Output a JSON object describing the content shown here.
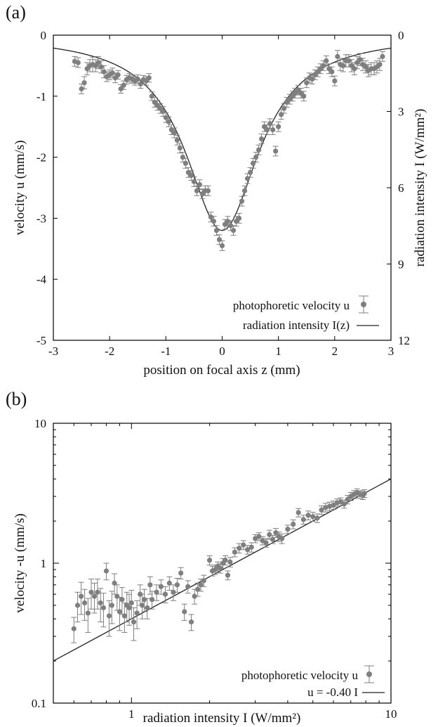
{
  "chart_data": [
    {
      "panel_label": "(a)",
      "type": "scatter",
      "xlabel": "position on focal axis z (mm)",
      "ylabel": "velocity u (mm/s)",
      "y2label": "radiation intensity I (W/mm²)",
      "xlim": [
        -3,
        3
      ],
      "ylim": [
        -5,
        0
      ],
      "y2lim": [
        12,
        0
      ],
      "x_ticks": [
        "-3",
        "-2",
        "-1",
        "0",
        "1",
        "2",
        "3"
      ],
      "y_ticks": [
        "0",
        "-1",
        "-2",
        "-3",
        "-4",
        "-5"
      ],
      "y2_ticks": [
        "0",
        "3",
        "6",
        "9",
        "12"
      ],
      "legend": {
        "position": "bottom-right",
        "entries": [
          "photophoretic velocity u",
          "radiation intensity I(z)"
        ]
      },
      "series": [
        {
          "name": "photophoretic velocity u",
          "marker": "point-errorbar",
          "color": "#7f7f7f",
          "points": [
            [
              -2.62,
              -0.43,
              0.08
            ],
            [
              -2.56,
              -0.45,
              0.08
            ],
            [
              -2.5,
              -0.88,
              0.08
            ],
            [
              -2.45,
              -0.78,
              0.1
            ],
            [
              -2.4,
              -0.55,
              0.1
            ],
            [
              -2.35,
              -0.5,
              0.1
            ],
            [
              -2.3,
              -0.48,
              0.12
            ],
            [
              -2.25,
              -0.5,
              0.1
            ],
            [
              -2.2,
              -0.45,
              0.1
            ],
            [
              -2.15,
              -0.52,
              0.1
            ],
            [
              -2.1,
              -0.6,
              0.1
            ],
            [
              -2.05,
              -0.68,
              0.08
            ],
            [
              -2.0,
              -0.65,
              0.08
            ],
            [
              -1.95,
              -0.62,
              0.08
            ],
            [
              -1.9,
              -0.7,
              0.08
            ],
            [
              -1.85,
              -0.65,
              0.07
            ],
            [
              -1.8,
              -0.88,
              0.07
            ],
            [
              -1.75,
              -0.82,
              0.07
            ],
            [
              -1.7,
              -0.73,
              0.07
            ],
            [
              -1.65,
              -0.7,
              0.07
            ],
            [
              -1.6,
              -0.72,
              0.07
            ],
            [
              -1.55,
              -0.75,
              0.07
            ],
            [
              -1.5,
              -0.72,
              0.07
            ],
            [
              -1.45,
              -0.8,
              0.07
            ],
            [
              -1.4,
              -0.73,
              0.07
            ],
            [
              -1.35,
              -0.75,
              0.07
            ],
            [
              -1.3,
              -0.7,
              0.07
            ],
            [
              -1.25,
              -1.0,
              0.07
            ],
            [
              -1.2,
              -1.1,
              0.08
            ],
            [
              -1.15,
              -1.15,
              0.08
            ],
            [
              -1.1,
              -1.2,
              0.08
            ],
            [
              -1.05,
              -1.25,
              0.08
            ],
            [
              -1.0,
              -1.35,
              0.08
            ],
            [
              -0.95,
              -1.42,
              0.08
            ],
            [
              -0.9,
              -1.55,
              0.08
            ],
            [
              -0.85,
              -1.6,
              0.08
            ],
            [
              -0.8,
              -1.72,
              0.08
            ],
            [
              -0.75,
              -1.85,
              0.08
            ],
            [
              -0.7,
              -2.0,
              0.08
            ],
            [
              -0.65,
              -2.1,
              0.08
            ],
            [
              -0.6,
              -2.25,
              0.08
            ],
            [
              -0.55,
              -2.3,
              0.08
            ],
            [
              -0.5,
              -2.4,
              0.08
            ],
            [
              -0.45,
              -2.55,
              0.08
            ],
            [
              -0.4,
              -2.45,
              0.08
            ],
            [
              -0.35,
              -2.6,
              0.08
            ],
            [
              -0.3,
              -2.55,
              0.08
            ],
            [
              -0.25,
              -2.55,
              0.08
            ],
            [
              -0.2,
              -2.98,
              0.08
            ],
            [
              -0.15,
              -3.05,
              0.08
            ],
            [
              -0.1,
              -3.2,
              0.08
            ],
            [
              -0.05,
              -3.35,
              0.08
            ],
            [
              0.0,
              -3.45,
              0.08
            ],
            [
              0.05,
              -3.1,
              0.08
            ],
            [
              0.1,
              -3.05,
              0.08
            ],
            [
              0.15,
              -3.12,
              0.08
            ],
            [
              0.2,
              -3.2,
              0.08
            ],
            [
              0.25,
              -3.05,
              0.08
            ],
            [
              0.3,
              -3.0,
              0.08
            ],
            [
              0.35,
              -2.72,
              0.08
            ],
            [
              0.4,
              -2.55,
              0.08
            ],
            [
              0.45,
              -2.35,
              0.08
            ],
            [
              0.5,
              -2.25,
              0.08
            ],
            [
              0.55,
              -2.1,
              0.08
            ],
            [
              0.6,
              -2.0,
              0.08
            ],
            [
              0.65,
              -1.88,
              0.08
            ],
            [
              0.7,
              -1.7,
              0.08
            ],
            [
              0.75,
              -1.5,
              0.08
            ],
            [
              0.8,
              -1.55,
              0.08
            ],
            [
              0.85,
              -1.45,
              0.08
            ],
            [
              0.9,
              -1.55,
              0.08
            ],
            [
              0.95,
              -1.9,
              0.08
            ],
            [
              1.0,
              -1.5,
              0.08
            ],
            [
              1.05,
              -1.3,
              0.08
            ],
            [
              1.1,
              -1.2,
              0.08
            ],
            [
              1.15,
              -1.1,
              0.08
            ],
            [
              1.2,
              -1.05,
              0.08
            ],
            [
              1.25,
              -1.0,
              0.08
            ],
            [
              1.3,
              -0.95,
              0.08
            ],
            [
              1.35,
              -0.9,
              0.08
            ],
            [
              1.4,
              -0.95,
              0.08
            ],
            [
              1.45,
              -1.0,
              0.08
            ],
            [
              1.5,
              -0.78,
              0.08
            ],
            [
              1.55,
              -0.7,
              0.08
            ],
            [
              1.6,
              -0.72,
              0.08
            ],
            [
              1.65,
              -0.65,
              0.08
            ],
            [
              1.7,
              -0.6,
              0.08
            ],
            [
              1.75,
              -0.55,
              0.08
            ],
            [
              1.8,
              -0.5,
              0.08
            ],
            [
              1.85,
              -0.42,
              0.08
            ],
            [
              1.9,
              -0.55,
              0.08
            ],
            [
              1.95,
              -0.6,
              0.08
            ],
            [
              2.0,
              -0.75,
              0.08
            ],
            [
              2.05,
              -0.35,
              0.1
            ],
            [
              2.1,
              -0.48,
              0.1
            ],
            [
              2.15,
              -0.5,
              0.1
            ],
            [
              2.2,
              -0.42,
              0.1
            ],
            [
              2.25,
              -0.42,
              0.1
            ],
            [
              2.3,
              -0.5,
              0.1
            ],
            [
              2.35,
              -0.55,
              0.1
            ],
            [
              2.4,
              -0.45,
              0.1
            ],
            [
              2.45,
              -0.4,
              0.1
            ],
            [
              2.5,
              -0.48,
              0.1
            ],
            [
              2.55,
              -0.52,
              0.1
            ],
            [
              2.6,
              -0.58,
              0.1
            ],
            [
              2.65,
              -0.55,
              0.1
            ],
            [
              2.7,
              -0.55,
              0.1
            ],
            [
              2.75,
              -0.52,
              0.1
            ],
            [
              2.8,
              -0.48,
              0.1
            ],
            [
              2.85,
              -0.35,
              0.08
            ]
          ]
        },
        {
          "name": "radiation intensity I(z)",
          "marker": "line",
          "color": "#222222",
          "function": "lorentzian",
          "peak_y": -3.2,
          "half_width_z": 0.8
        }
      ]
    },
    {
      "panel_label": "(b)",
      "type": "scatter",
      "xlabel": "radiation intensity I (W/mm²)",
      "ylabel": "velocity -u (mm/s)",
      "xscale": "log",
      "yscale": "log",
      "xlim": [
        0.5,
        10
      ],
      "ylim": [
        0.1,
        10
      ],
      "x_ticks": [
        "1",
        "10"
      ],
      "y_ticks": [
        "0.1",
        "1",
        "10"
      ],
      "legend": {
        "position": "bottom-right",
        "entries": [
          "photophoretic velocity u",
          "u = -0.40 I"
        ]
      },
      "series": [
        {
          "name": "photophoretic velocity u",
          "marker": "point-errorbar",
          "color": "#7f7f7f",
          "points": [
            [
              0.6,
              0.34,
              0.07
            ],
            [
              0.62,
              0.5,
              0.12
            ],
            [
              0.64,
              0.58,
              0.15
            ],
            [
              0.66,
              0.52,
              0.13
            ],
            [
              0.68,
              0.44,
              0.12
            ],
            [
              0.7,
              0.62,
              0.15
            ],
            [
              0.72,
              0.58,
              0.14
            ],
            [
              0.74,
              0.62,
              0.15
            ],
            [
              0.76,
              0.52,
              0.14
            ],
            [
              0.78,
              0.48,
              0.13
            ],
            [
              0.8,
              0.88,
              0.12
            ],
            [
              0.82,
              0.42,
              0.12
            ],
            [
              0.84,
              0.5,
              0.13
            ],
            [
              0.86,
              0.72,
              0.12
            ],
            [
              0.88,
              0.58,
              0.12
            ],
            [
              0.9,
              0.45,
              0.12
            ],
            [
              0.92,
              0.55,
              0.12
            ],
            [
              0.94,
              0.42,
              0.1
            ],
            [
              0.96,
              0.5,
              0.12
            ],
            [
              0.98,
              0.48,
              0.12
            ],
            [
              1.0,
              0.52,
              0.12
            ],
            [
              1.02,
              0.38,
              0.1
            ],
            [
              1.05,
              0.44,
              0.1
            ],
            [
              1.08,
              0.6,
              0.1
            ],
            [
              1.1,
              0.5,
              0.1
            ],
            [
              1.12,
              0.55,
              0.1
            ],
            [
              1.15,
              0.48,
              0.08
            ],
            [
              1.18,
              0.7,
              0.1
            ],
            [
              1.2,
              0.55,
              0.08
            ],
            [
              1.25,
              0.62,
              0.08
            ],
            [
              1.3,
              0.68,
              0.08
            ],
            [
              1.35,
              0.6,
              0.08
            ],
            [
              1.4,
              0.72,
              0.08
            ],
            [
              1.45,
              0.62,
              0.08
            ],
            [
              1.5,
              0.7,
              0.08
            ],
            [
              1.55,
              0.85,
              0.08
            ],
            [
              1.6,
              0.45,
              0.06
            ],
            [
              1.65,
              0.68,
              0.07
            ],
            [
              1.7,
              0.38,
              0.05
            ],
            [
              1.75,
              0.58,
              0.07
            ],
            [
              1.8,
              0.65,
              0.07
            ],
            [
              1.85,
              0.7,
              0.07
            ],
            [
              1.9,
              0.75,
              0.07
            ],
            [
              2.0,
              1.05,
              0.08
            ],
            [
              2.05,
              0.88,
              0.07
            ],
            [
              2.1,
              0.9,
              0.07
            ],
            [
              2.15,
              0.95,
              0.07
            ],
            [
              2.2,
              0.92,
              0.07
            ],
            [
              2.25,
              1.0,
              0.08
            ],
            [
              2.3,
              1.05,
              0.08
            ],
            [
              2.35,
              0.82,
              0.06
            ],
            [
              2.4,
              1.02,
              0.08
            ],
            [
              2.5,
              1.2,
              0.09
            ],
            [
              2.6,
              1.28,
              0.1
            ],
            [
              2.7,
              1.35,
              0.1
            ],
            [
              2.8,
              1.25,
              0.09
            ],
            [
              2.9,
              1.3,
              0.1
            ],
            [
              3.0,
              1.5,
              0.1
            ],
            [
              3.1,
              1.55,
              0.1
            ],
            [
              3.2,
              1.45,
              0.1
            ],
            [
              3.3,
              1.4,
              0.1
            ],
            [
              3.4,
              1.6,
              0.12
            ],
            [
              3.5,
              1.48,
              0.1
            ],
            [
              3.6,
              1.65,
              0.12
            ],
            [
              3.7,
              1.55,
              0.12
            ],
            [
              3.8,
              1.5,
              0.12
            ],
            [
              4.0,
              1.75,
              0.12
            ],
            [
              4.2,
              1.9,
              0.14
            ],
            [
              4.4,
              2.3,
              0.16
            ],
            [
              4.6,
              2.05,
              0.15
            ],
            [
              4.8,
              2.2,
              0.16
            ],
            [
              5.0,
              2.15,
              0.16
            ],
            [
              5.2,
              2.1,
              0.15
            ],
            [
              5.4,
              2.4,
              0.17
            ],
            [
              5.6,
              2.5,
              0.18
            ],
            [
              5.8,
              2.55,
              0.18
            ],
            [
              6.0,
              2.6,
              0.18
            ],
            [
              6.2,
              2.7,
              0.18
            ],
            [
              6.4,
              2.75,
              0.18
            ],
            [
              6.6,
              2.65,
              0.18
            ],
            [
              6.8,
              2.85,
              0.2
            ],
            [
              7.0,
              3.0,
              0.2
            ],
            [
              7.2,
              3.1,
              0.2
            ],
            [
              7.4,
              3.2,
              0.2
            ],
            [
              7.6,
              3.1,
              0.2
            ],
            [
              7.8,
              3.05,
              0.2
            ],
            [
              7.9,
              3.15,
              0.2
            ]
          ]
        },
        {
          "name": "u = -0.40 I",
          "marker": "line",
          "color": "#222222",
          "slope": 0.4
        }
      ]
    }
  ]
}
